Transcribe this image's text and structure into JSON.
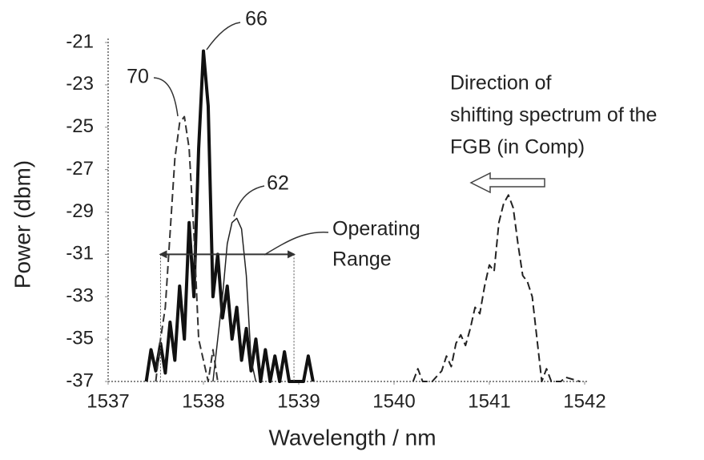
{
  "chart_data": {
    "type": "line",
    "x_label": "Wavelength / nm",
    "y_label": "Power (dbm)",
    "xlim": [
      1537,
      1542
    ],
    "xticks": [
      1537,
      1538,
      1539,
      1540,
      1541,
      1542
    ],
    "ylim": [
      -37,
      -21
    ],
    "yticks": [
      -37,
      -35,
      -33,
      -31,
      -29,
      -27,
      -25,
      -23,
      -21
    ],
    "series": [
      {
        "color": "#111",
        "line_style": "thick",
        "x": [
          1537.4,
          1537.45,
          1537.5,
          1537.55,
          1537.6,
          1537.65,
          1537.7,
          1537.75,
          1537.8,
          1537.85,
          1537.9,
          1537.95,
          1538.0,
          1538.05,
          1538.1,
          1538.15,
          1538.2,
          1538.25,
          1538.3,
          1538.35,
          1538.4,
          1538.45,
          1538.5,
          1538.55,
          1538.6,
          1538.65,
          1538.7,
          1538.75,
          1538.8,
          1538.85,
          1538.9,
          1538.95,
          1539.05,
          1539.1,
          1539.15
        ],
        "values": [
          -37,
          -35.5,
          -36.5,
          -35.2,
          -36.6,
          -34.2,
          -36,
          -32.5,
          -35,
          -29.5,
          -33,
          -26,
          -21.4,
          -24,
          -33,
          -31,
          -34,
          -32.5,
          -35,
          -33.5,
          -36,
          -34.5,
          -36.5,
          -35,
          -37,
          -35.5,
          -37,
          -35.8,
          -37,
          -35.6,
          -37,
          -37,
          -37,
          -35.8,
          -37
        ]
      },
      {
        "color": "#333",
        "line_style": "dashed",
        "x": [
          1537.5,
          1537.55,
          1537.6,
          1537.65,
          1537.7,
          1537.75,
          1537.8,
          1537.85,
          1537.9,
          1537.95,
          1538.0,
          1538.05,
          1538.1,
          1538.15
        ],
        "values": [
          -37,
          -35,
          -33.5,
          -30,
          -26.5,
          -24.8,
          -24.5,
          -26,
          -30,
          -35,
          -36,
          -37,
          -35.5,
          -37
        ]
      },
      {
        "color": "#222",
        "line_style": "thin",
        "x": [
          1538.1,
          1538.2,
          1538.25,
          1538.3,
          1538.35,
          1538.4,
          1538.45,
          1538.5,
          1538.55
        ],
        "values": [
          -37,
          -33,
          -30.5,
          -29.5,
          -29.3,
          -29.8,
          -32,
          -36,
          -37
        ]
      },
      {
        "color": "#222",
        "line_style": "dashed",
        "x": [
          1540.2,
          1540.25,
          1540.3,
          1540.4,
          1540.5,
          1540.55,
          1540.6,
          1540.65,
          1540.7,
          1540.75,
          1540.8,
          1540.85,
          1540.9,
          1540.95,
          1541.0,
          1541.05,
          1541.1,
          1541.15,
          1541.2,
          1541.25,
          1541.3,
          1541.35,
          1541.4,
          1541.45,
          1541.5,
          1541.55,
          1541.6,
          1541.65,
          1541.75,
          1541.8,
          1541.95
        ],
        "values": [
          -37,
          -36.4,
          -37,
          -37,
          -36.5,
          -35.8,
          -36.3,
          -35.2,
          -34.8,
          -35.3,
          -34.5,
          -33.5,
          -33.8,
          -32.5,
          -31.5,
          -31.8,
          -29.5,
          -28.6,
          -28.2,
          -28.8,
          -30.5,
          -32,
          -32.3,
          -33,
          -35,
          -37,
          -36.4,
          -37,
          -37,
          -36.8,
          -37
        ]
      }
    ],
    "operating_range": {
      "x": [
        1537.55,
        1538.95
      ],
      "y": -31
    },
    "annotations": [
      "66",
      "70",
      "62",
      "Operating",
      "Range",
      "Direction of",
      "shifting spectrum of the",
      "FGB (in Comp)"
    ]
  }
}
